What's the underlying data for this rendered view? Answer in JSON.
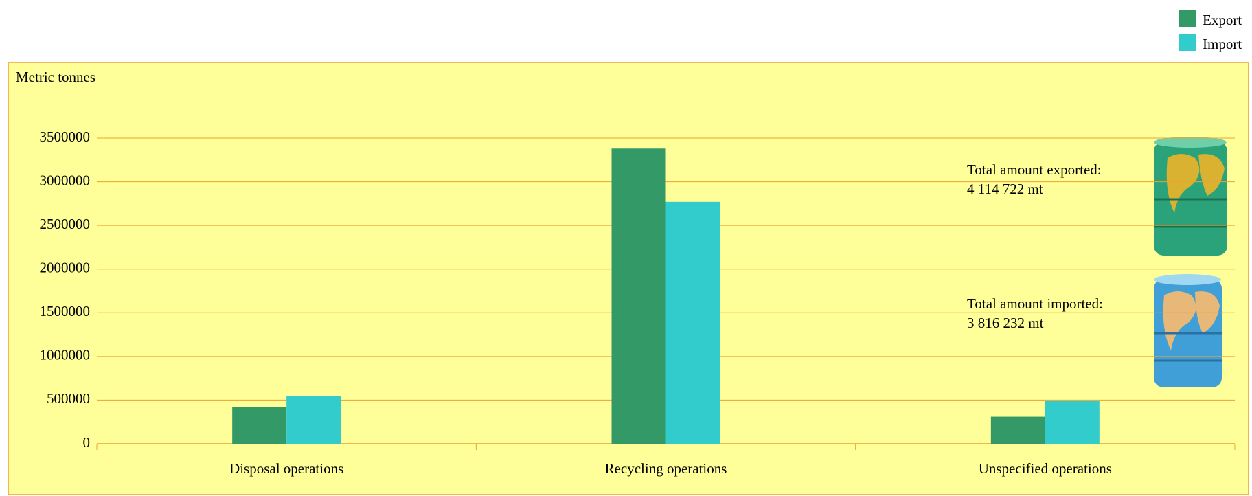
{
  "chart_data": {
    "type": "bar",
    "y_label": "Metric tonnes",
    "categories": [
      "Disposal operations",
      "Recycling operations",
      "Unspecified operations"
    ],
    "series": [
      {
        "name": "Export",
        "color": "#339966",
        "values": [
          420000,
          3380000,
          310000
        ]
      },
      {
        "name": "Import",
        "color": "#33cccc",
        "values": [
          550000,
          2770000,
          496000
        ]
      }
    ],
    "ylim": [
      0,
      3500000
    ],
    "yticks": [
      0,
      500000,
      1000000,
      1500000,
      2000000,
      2500000,
      3000000,
      3500000
    ],
    "grid": true,
    "legend": "top-right",
    "annotations": [
      {
        "lines": [
          "Total amount exported:",
          "4 114 722 mt"
        ]
      },
      {
        "lines": [
          "Total amount imported:",
          "3 816 232 mt"
        ]
      }
    ]
  }
}
